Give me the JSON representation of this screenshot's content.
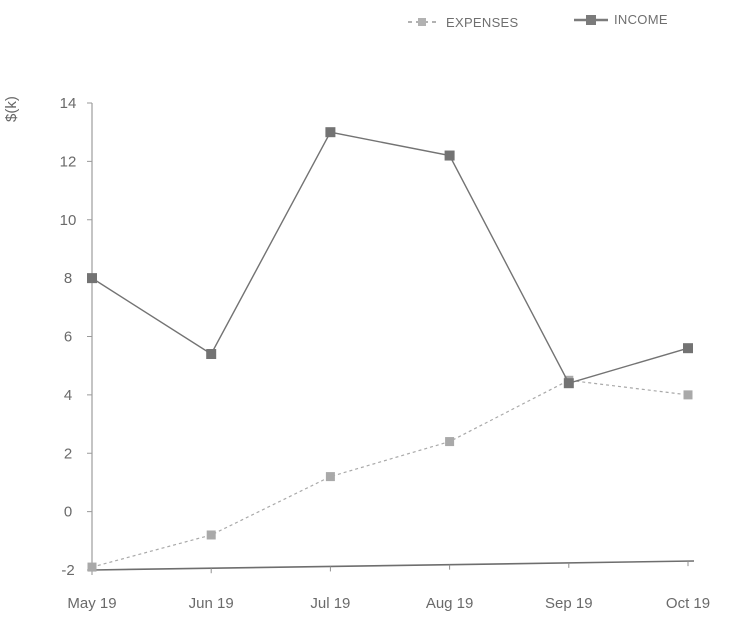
{
  "chart_data": {
    "type": "line",
    "title": "",
    "xlabel": "",
    "ylabel": "$(k)",
    "categories": [
      "May 19",
      "Jun 19",
      "Jul 19",
      "Aug 19",
      "Sep 19",
      "Oct 19"
    ],
    "y_ticks": [
      "14",
      "12",
      "10",
      "8",
      "6",
      "4",
      "2",
      "0",
      "-2"
    ],
    "ylim": [
      -2,
      14
    ],
    "grid": false,
    "legend_position": "top-right",
    "series": [
      {
        "name": "EXPENSES",
        "values": [
          -1.9,
          -0.8,
          1.2,
          2.4,
          4.5,
          4.0
        ],
        "color": "#a9a9a9",
        "line_style": "dashed"
      },
      {
        "name": "INCOME",
        "values": [
          8.0,
          5.4,
          13.0,
          12.2,
          4.4,
          5.6
        ],
        "color": "#737373",
        "line_style": "solid"
      }
    ]
  }
}
